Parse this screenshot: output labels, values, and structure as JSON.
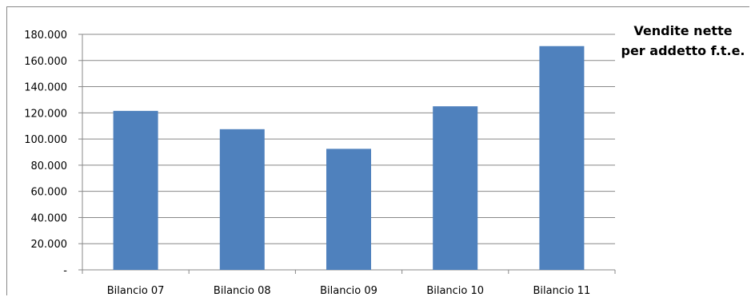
{
  "chart_data": {
    "type": "bar",
    "title_lines": [
      "Vendite nette",
      "per addetto f.t.e."
    ],
    "xlabel": "",
    "ylabel": "",
    "categories": [
      "Bilancio 07",
      "Bilancio 08",
      "Bilancio 09",
      "Bilancio 10",
      "Bilancio 11"
    ],
    "values": [
      121500,
      107500,
      92500,
      125000,
      171000
    ],
    "ylim": [
      0,
      180000
    ],
    "yticks": [
      0,
      20000,
      40000,
      60000,
      80000,
      100000,
      120000,
      140000,
      160000,
      180000
    ],
    "ytick_labels": [
      "-",
      "20.000",
      "40.000",
      "60.000",
      "80.000",
      "100.000",
      "120.000",
      "140.000",
      "160.000",
      "180.000"
    ],
    "grid": true,
    "legend": "none",
    "bar_color": "#4F81BD"
  }
}
